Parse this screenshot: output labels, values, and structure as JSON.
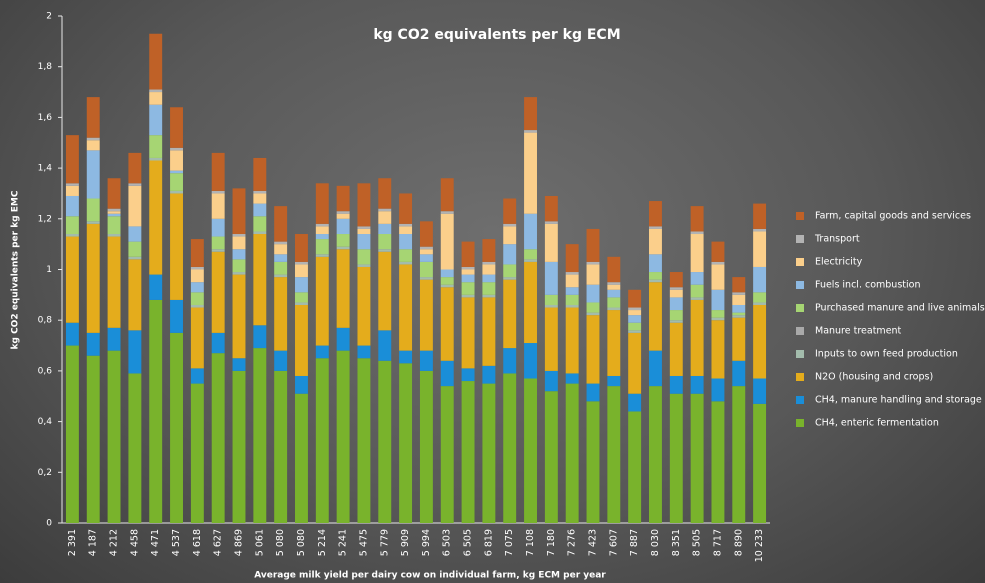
{
  "chart_data": {
    "type": "stacked-bar",
    "title": "kg CO2 equivalents per kg ECM",
    "x_label": "Average milk yield per dairy cow on individual farm, kg ECM per year",
    "y_label": "kg CO2 equivalents per kg EMC",
    "categories": [
      "2 391",
      "4 187",
      "4 212",
      "4 458",
      "4 471",
      "4 537",
      "4 618",
      "4 627",
      "4 869",
      "5 061",
      "5 080",
      "5 080",
      "5 214",
      "5 241",
      "5 475",
      "5 779",
      "5 909",
      "5 994",
      "6 503",
      "6 505",
      "6 819",
      "7 075",
      "7 108",
      "7 180",
      "7 276",
      "7 423",
      "7 607",
      "7 887",
      "8 030",
      "8 351",
      "8 505",
      "8 717",
      "8 890",
      "10 233"
    ],
    "series": [
      {
        "name": "CH4, enteric fermentation",
        "color": "#79b32c",
        "values": [
          0.7,
          0.66,
          0.68,
          0.59,
          0.88,
          0.75,
          0.55,
          0.67,
          0.6,
          0.69,
          0.6,
          0.51,
          0.65,
          0.68,
          0.65,
          0.64,
          0.63,
          0.6,
          0.54,
          0.56,
          0.55,
          0.59,
          0.57,
          0.52,
          0.55,
          0.48,
          0.54,
          0.44,
          0.54,
          0.51,
          0.51,
          0.48,
          0.54,
          0.47
        ]
      },
      {
        "name": "CH4, manure handling and storage",
        "color": "#1a8ed8",
        "values": [
          0.09,
          0.09,
          0.09,
          0.17,
          0.1,
          0.13,
          0.06,
          0.08,
          0.05,
          0.09,
          0.08,
          0.07,
          0.05,
          0.09,
          0.05,
          0.12,
          0.05,
          0.08,
          0.1,
          0.05,
          0.07,
          0.1,
          0.14,
          0.08,
          0.04,
          0.07,
          0.04,
          0.07,
          0.14,
          0.07,
          0.07,
          0.09,
          0.1,
          0.1
        ]
      },
      {
        "name": "N2O (housing and crops)",
        "color": "#e4ac1c",
        "values": [
          0.34,
          0.43,
          0.36,
          0.28,
          0.45,
          0.42,
          0.24,
          0.32,
          0.33,
          0.36,
          0.29,
          0.28,
          0.35,
          0.31,
          0.31,
          0.31,
          0.34,
          0.28,
          0.29,
          0.28,
          0.27,
          0.27,
          0.32,
          0.25,
          0.26,
          0.27,
          0.26,
          0.24,
          0.27,
          0.21,
          0.3,
          0.23,
          0.17,
          0.29
        ]
      },
      {
        "name": "Inputs to own feed production",
        "color": "#a3bcac",
        "values": [
          0.01,
          0.01,
          0.01,
          0.01,
          0.01,
          0.01,
          0.01,
          0.01,
          0.01,
          0.01,
          0.01,
          0.01,
          0.01,
          0.01,
          0.01,
          0.01,
          0.01,
          0.01,
          0.01,
          0.01,
          0.01,
          0.01,
          0.01,
          0.01,
          0.01,
          0.01,
          0.01,
          0.01,
          0.01,
          0.01,
          0.01,
          0.01,
          0.01,
          0.01
        ]
      },
      {
        "name": "Manure treatment",
        "color": "#a9a9a9",
        "values": [
          0,
          0,
          0,
          0,
          0,
          0,
          0,
          0,
          0,
          0,
          0,
          0,
          0,
          0,
          0,
          0,
          0,
          0,
          0,
          0,
          0,
          0,
          0,
          0,
          0,
          0,
          0,
          0,
          0,
          0,
          0,
          0,
          0,
          0
        ]
      },
      {
        "name": "Purchased manure and live animals",
        "color": "#a6d573",
        "values": [
          0.07,
          0.09,
          0.07,
          0.06,
          0.09,
          0.07,
          0.05,
          0.05,
          0.05,
          0.06,
          0.05,
          0.04,
          0.06,
          0.05,
          0.06,
          0.06,
          0.05,
          0.06,
          0.03,
          0.05,
          0.05,
          0.05,
          0.04,
          0.04,
          0.04,
          0.04,
          0.04,
          0.03,
          0.03,
          0.04,
          0.05,
          0.03,
          0.01,
          0.04
        ]
      },
      {
        "name": "Fuels incl. combustion",
        "color": "#8db9e2",
        "values": [
          0.08,
          0.19,
          0.01,
          0.06,
          0.12,
          0.01,
          0.04,
          0.07,
          0.04,
          0.05,
          0.03,
          0.06,
          0.02,
          0.06,
          0.06,
          0.04,
          0.06,
          0.03,
          0.03,
          0.03,
          0.03,
          0.08,
          0.14,
          0.13,
          0.03,
          0.07,
          0.03,
          0.03,
          0.07,
          0.05,
          0.05,
          0.08,
          0.03,
          0.1
        ]
      },
      {
        "name": "Electricity",
        "color": "#fbcf8b",
        "values": [
          0.04,
          0.04,
          0.01,
          0.16,
          0.05,
          0.08,
          0.05,
          0.1,
          0.05,
          0.04,
          0.04,
          0.05,
          0.03,
          0.02,
          0.02,
          0.05,
          0.03,
          0.02,
          0.22,
          0.02,
          0.04,
          0.07,
          0.32,
          0.15,
          0.05,
          0.08,
          0.02,
          0.02,
          0.1,
          0.03,
          0.15,
          0.1,
          0.04,
          0.14
        ]
      },
      {
        "name": "Transport",
        "color": "#b3b3b3",
        "values": [
          0.01,
          0.01,
          0.01,
          0.01,
          0.01,
          0.01,
          0.01,
          0.01,
          0.01,
          0.01,
          0.01,
          0.01,
          0.01,
          0.01,
          0.01,
          0.01,
          0.01,
          0.01,
          0.01,
          0.01,
          0.01,
          0.01,
          0.01,
          0.01,
          0.01,
          0.01,
          0.01,
          0.01,
          0.01,
          0.01,
          0.01,
          0.01,
          0.01,
          0.01
        ]
      },
      {
        "name": "Farm, capital goods and services",
        "color": "#bf6127",
        "values": [
          0.19,
          0.16,
          0.12,
          0.12,
          0.22,
          0.16,
          0.11,
          0.15,
          0.18,
          0.13,
          0.14,
          0.11,
          0.16,
          0.1,
          0.17,
          0.12,
          0.12,
          0.1,
          0.13,
          0.1,
          0.09,
          0.1,
          0.13,
          0.1,
          0.11,
          0.13,
          0.1,
          0.07,
          0.1,
          0.06,
          0.1,
          0.08,
          0.06,
          0.1
        ]
      }
    ],
    "ylim": [
      0,
      2
    ],
    "yticks": [
      0,
      {
        "value": 0.2,
        "label": "0,2"
      },
      {
        "value": 0.4,
        "label": "0,4"
      },
      {
        "value": 0.6,
        "label": "0,6"
      },
      {
        "value": 0.8,
        "label": "0,8"
      },
      1,
      {
        "value": 1.2,
        "label": "1,2"
      },
      {
        "value": 1.4,
        "label": "1,4"
      },
      {
        "value": 1.6,
        "label": "1,6"
      },
      {
        "value": 1.8,
        "label": "1,8"
      },
      2
    ],
    "legend": "right"
  }
}
